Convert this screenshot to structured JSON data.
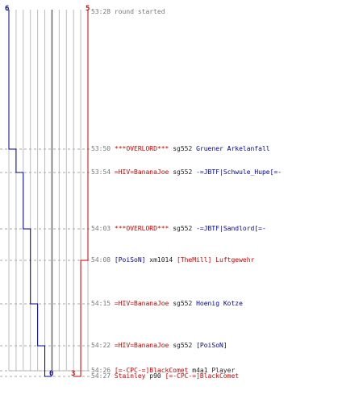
{
  "colors": {
    "red": "#cc0000",
    "blue": "#000099",
    "grid": "#bbbbbb",
    "dash": "#aaaaaa",
    "text": "#777777"
  },
  "header": {
    "blue_start": "6",
    "red_start": "5",
    "blue_end": "0",
    "red_end": "3"
  },
  "events": [
    {
      "time": "53:28",
      "text": "round started",
      "alive_blue": 6,
      "alive_red": 5
    },
    {
      "time": "53:50",
      "killer": "***OVERLORD***",
      "killer_team": "red",
      "weapon": "sg552",
      "victim": "Gruener Arkelanfall",
      "victim_team": "blue",
      "alive_blue": 5,
      "alive_red": 5
    },
    {
      "time": "53:54",
      "killer": "=HIV=BananaJoe",
      "killer_team": "red",
      "weapon": "sg552",
      "victim": "-=JBTF|Schwule_Hupe[=-",
      "victim_team": "blue",
      "alive_blue": 4,
      "alive_red": 5
    },
    {
      "time": "54:03",
      "killer": "***OVERLORD***",
      "killer_team": "red",
      "weapon": "sg552",
      "victim": "-=JBTF|Sandlord[=-",
      "victim_team": "blue",
      "alive_blue": 3,
      "alive_red": 5
    },
    {
      "time": "54:08",
      "killer": "[PoiSoN]",
      "killer_team": "blue",
      "weapon": "xm1014",
      "victim": "[TheMill] Luftgewehr",
      "victim_team": "red",
      "alive_blue": 3,
      "alive_red": 4
    },
    {
      "time": "54:15",
      "killer": "=HIV=BananaJoe",
      "killer_team": "red",
      "weapon": "sg552",
      "victim": "Hoenig Kotze",
      "victim_team": "blue",
      "alive_blue": 2,
      "alive_red": 4
    },
    {
      "time": "54:22",
      "killer": "=HIV=BananaJoe",
      "killer_team": "red",
      "weapon": "sg552",
      "victim": "[PoiSoN]",
      "victim_team": "blue",
      "alive_blue": 1,
      "alive_red": 4
    },
    {
      "time": "54:26",
      "killer": "[=-CPC-=]BlackComet",
      "killer_team": "red",
      "weapon": "m4a1",
      "victim": "Player",
      "victim_team": "neutral",
      "alive_blue": 1,
      "alive_red": 4
    },
    {
      "time": "54:27",
      "killer": "Stainley",
      "killer_team": "red",
      "weapon": "p90",
      "victim": "[=-CPC-=]BlackComet",
      "victim_team": "red",
      "alive_blue": 0,
      "alive_red": 3
    }
  ]
}
